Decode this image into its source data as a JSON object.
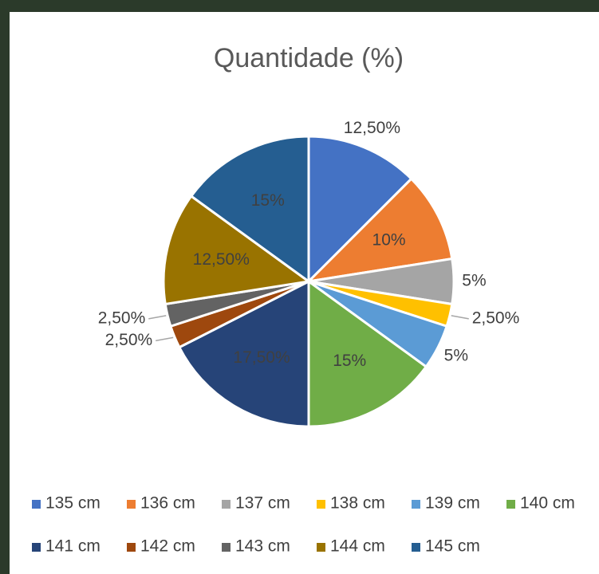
{
  "chart_data": {
    "type": "pie",
    "title": "Quantidade (%)",
    "categories": [
      "135 cm",
      "136 cm",
      "137 cm",
      "138 cm",
      "139 cm",
      "140 cm",
      "141 cm",
      "142 cm",
      "143 cm",
      "144 cm",
      "145 cm"
    ],
    "values": [
      12.5,
      10,
      5,
      2.5,
      5,
      15,
      17.5,
      2.5,
      2.5,
      12.5,
      15
    ],
    "value_labels": [
      "12,50%",
      "10%",
      "5%",
      "2,50%",
      "5%",
      "15%",
      "17,50%",
      "2,50%",
      "2,50%",
      "12,50%",
      "15%"
    ],
    "colors": [
      "#4472c4",
      "#ed7d31",
      "#a5a5a5",
      "#ffc000",
      "#5b9bd5",
      "#70ad47",
      "#264478",
      "#9e480e",
      "#636363",
      "#997300",
      "#255e91"
    ],
    "legend": "bottom"
  }
}
